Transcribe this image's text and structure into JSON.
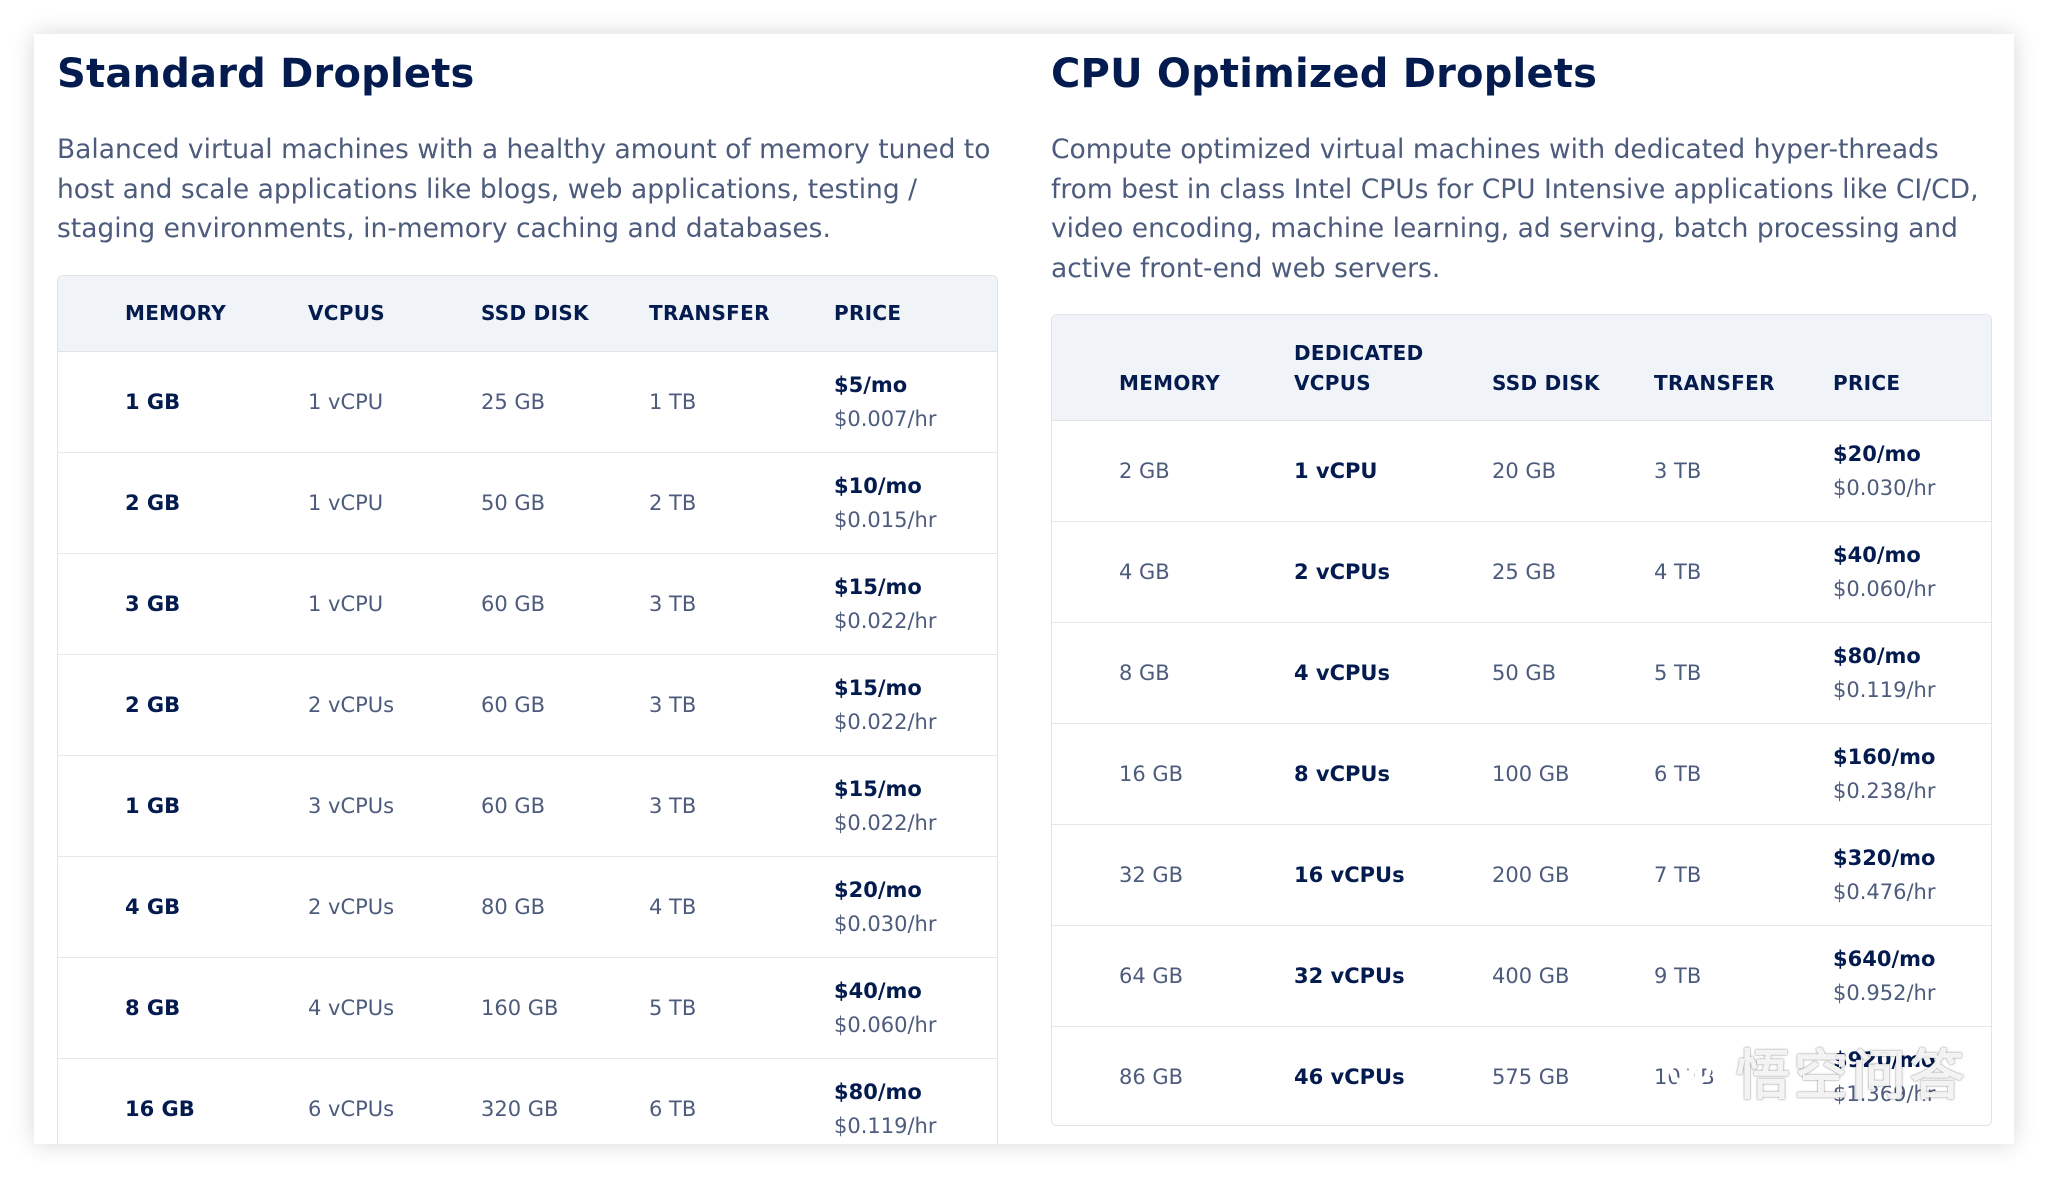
{
  "standard": {
    "title": "Standard Droplets",
    "description": "Balanced virtual machines with a healthy amount of memory tuned to host and scale applications like blogs, web applications, testing / staging environments, in-memory caching and databases.",
    "headers": [
      "MEMORY",
      "VCPUS",
      "SSD DISK",
      "TRANSFER",
      "PRICE"
    ],
    "rows": [
      {
        "memory": "1 GB",
        "vcpus": "1 vCPU",
        "disk": "25 GB",
        "transfer": "1 TB",
        "price_mo": "$5/mo",
        "price_hr": "$0.007/hr"
      },
      {
        "memory": "2 GB",
        "vcpus": "1 vCPU",
        "disk": "50 GB",
        "transfer": "2 TB",
        "price_mo": "$10/mo",
        "price_hr": "$0.015/hr"
      },
      {
        "memory": "3 GB",
        "vcpus": "1 vCPU",
        "disk": "60 GB",
        "transfer": "3 TB",
        "price_mo": "$15/mo",
        "price_hr": "$0.022/hr"
      },
      {
        "memory": "2 GB",
        "vcpus": "2 vCPUs",
        "disk": "60 GB",
        "transfer": "3 TB",
        "price_mo": "$15/mo",
        "price_hr": "$0.022/hr"
      },
      {
        "memory": "1 GB",
        "vcpus": "3 vCPUs",
        "disk": "60 GB",
        "transfer": "3 TB",
        "price_mo": "$15/mo",
        "price_hr": "$0.022/hr"
      },
      {
        "memory": "4 GB",
        "vcpus": "2 vCPUs",
        "disk": "80 GB",
        "transfer": "4 TB",
        "price_mo": "$20/mo",
        "price_hr": "$0.030/hr"
      },
      {
        "memory": "8 GB",
        "vcpus": "4 vCPUs",
        "disk": "160 GB",
        "transfer": "5 TB",
        "price_mo": "$40/mo",
        "price_hr": "$0.060/hr"
      },
      {
        "memory": "16 GB",
        "vcpus": "6 vCPUs",
        "disk": "320 GB",
        "transfer": "6 TB",
        "price_mo": "$80/mo",
        "price_hr": "$0.119/hr"
      }
    ]
  },
  "cpu_optimized": {
    "title": "CPU Optimized Droplets",
    "description": "Compute optimized virtual machines with dedicated hyper-threads from best in class Intel CPUs for CPU Intensive applications like CI/CD, video encoding, machine learning, ad serving, batch processing and active front-end web servers.",
    "headers": [
      "MEMORY",
      "DEDICATED",
      "VCPUS",
      "SSD DISK",
      "TRANSFER",
      "PRICE"
    ],
    "rows": [
      {
        "memory": "2 GB",
        "vcpus": "1 vCPU",
        "disk": "20 GB",
        "transfer": "3 TB",
        "price_mo": "$20/mo",
        "price_hr": "$0.030/hr"
      },
      {
        "memory": "4 GB",
        "vcpus": "2 vCPUs",
        "disk": "25 GB",
        "transfer": "4 TB",
        "price_mo": "$40/mo",
        "price_hr": "$0.060/hr"
      },
      {
        "memory": "8 GB",
        "vcpus": "4 vCPUs",
        "disk": "50 GB",
        "transfer": "5 TB",
        "price_mo": "$80/mo",
        "price_hr": "$0.119/hr"
      },
      {
        "memory": "16 GB",
        "vcpus": "8 vCPUs",
        "disk": "100 GB",
        "transfer": "6 TB",
        "price_mo": "$160/mo",
        "price_hr": "$0.238/hr"
      },
      {
        "memory": "32 GB",
        "vcpus": "16 vCPUs",
        "disk": "200 GB",
        "transfer": "7 TB",
        "price_mo": "$320/mo",
        "price_hr": "$0.476/hr"
      },
      {
        "memory": "64 GB",
        "vcpus": "32 vCPUs",
        "disk": "400 GB",
        "transfer": "9 TB",
        "price_mo": "$640/mo",
        "price_hr": "$0.952/hr"
      },
      {
        "memory": "86 GB",
        "vcpus": "46 vCPUs",
        "disk": "575 GB",
        "transfer": "10 TB",
        "price_mo": "$920/mo",
        "price_hr": "$1.369/hr"
      }
    ]
  },
  "watermark": {
    "text": "悟空问答"
  }
}
